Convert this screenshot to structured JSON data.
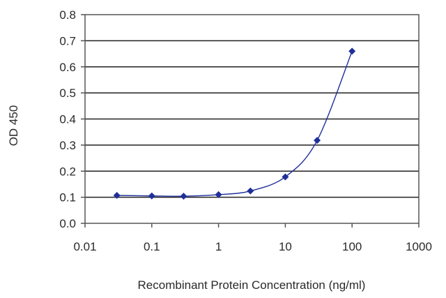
{
  "chart_data": {
    "type": "line",
    "title": "",
    "xlabel": "Recombinant Protein Concentration (ng/ml)",
    "ylabel": "OD 450",
    "x_scale": "log",
    "xlim": [
      0.01,
      1000
    ],
    "ylim": [
      0,
      0.8
    ],
    "x_ticks": [
      "0.01",
      "0.1",
      "1",
      "10",
      "100",
      "1000"
    ],
    "y_ticks": [
      "0.0",
      "0.1",
      "0.2",
      "0.3",
      "0.4",
      "0.5",
      "0.6",
      "0.7",
      "0.8"
    ],
    "grid": "horizontal",
    "legend": "none",
    "series": [
      {
        "color": "#1f2f9a",
        "marker": "diamond",
        "x": [
          0.03,
          0.1,
          0.3,
          1,
          3,
          10,
          30,
          100
        ],
        "y": [
          0.107,
          0.105,
          0.104,
          0.11,
          0.124,
          0.178,
          0.318,
          0.66
        ]
      }
    ]
  }
}
